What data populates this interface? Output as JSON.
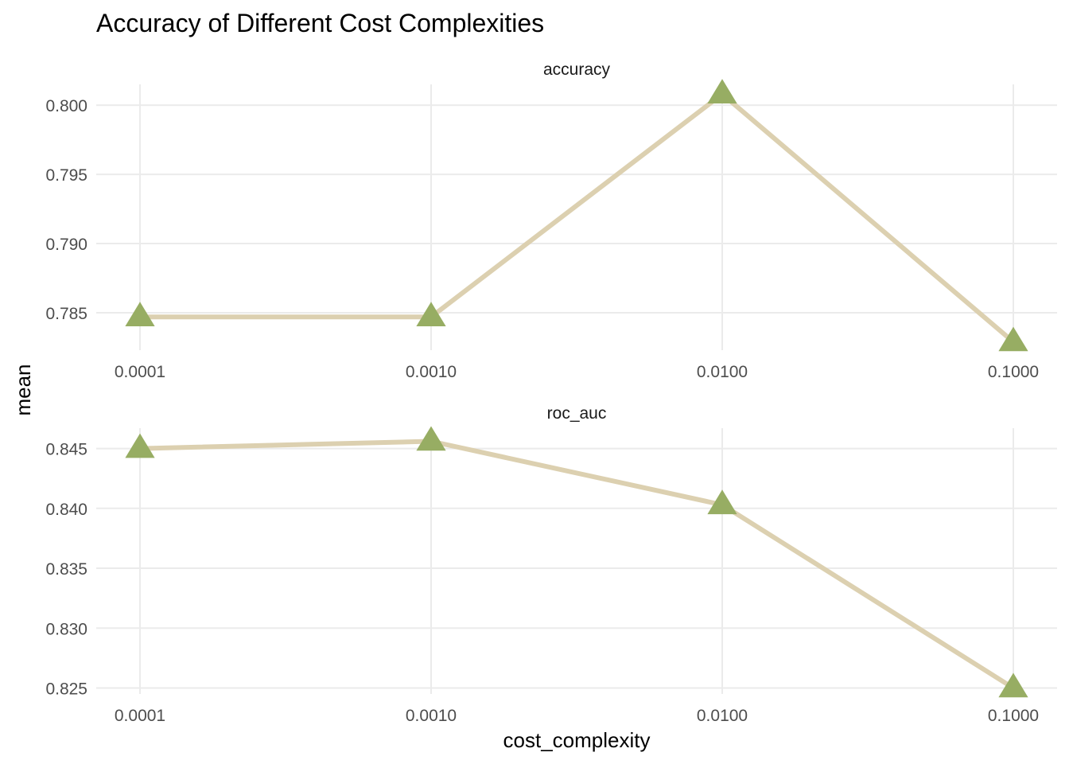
{
  "chart_data": {
    "type": "line",
    "title": "Accuracy of Different Cost Complexities",
    "xlabel": "cost_complexity",
    "ylabel": "mean",
    "x_scale": "log",
    "grid": true,
    "legend": "none",
    "colors": {
      "line": "#dcd0b0",
      "point": "#97ad63"
    },
    "x": [
      0.0001,
      0.001,
      0.01,
      0.1
    ],
    "x_tick_labels": [
      "0.0001",
      "0.0010",
      "0.0100",
      "0.1000"
    ],
    "facets": [
      {
        "name": "accuracy",
        "values": [
          0.7847,
          0.7847,
          0.8008,
          0.7829
        ],
        "ylim": [
          0.7823,
          0.8015
        ],
        "y_ticks": [
          0.785,
          0.79,
          0.795,
          0.8
        ],
        "y_tick_labels": [
          "0.785",
          "0.790",
          "0.795",
          "0.800"
        ]
      },
      {
        "name": "roc_auc",
        "values": [
          0.845,
          0.8456,
          0.8403,
          0.825
        ],
        "ylim": [
          0.8245,
          0.8467
        ],
        "y_ticks": [
          0.825,
          0.83,
          0.835,
          0.84,
          0.845
        ],
        "y_tick_labels": [
          "0.825",
          "0.830",
          "0.835",
          "0.840",
          "0.845"
        ]
      }
    ]
  }
}
